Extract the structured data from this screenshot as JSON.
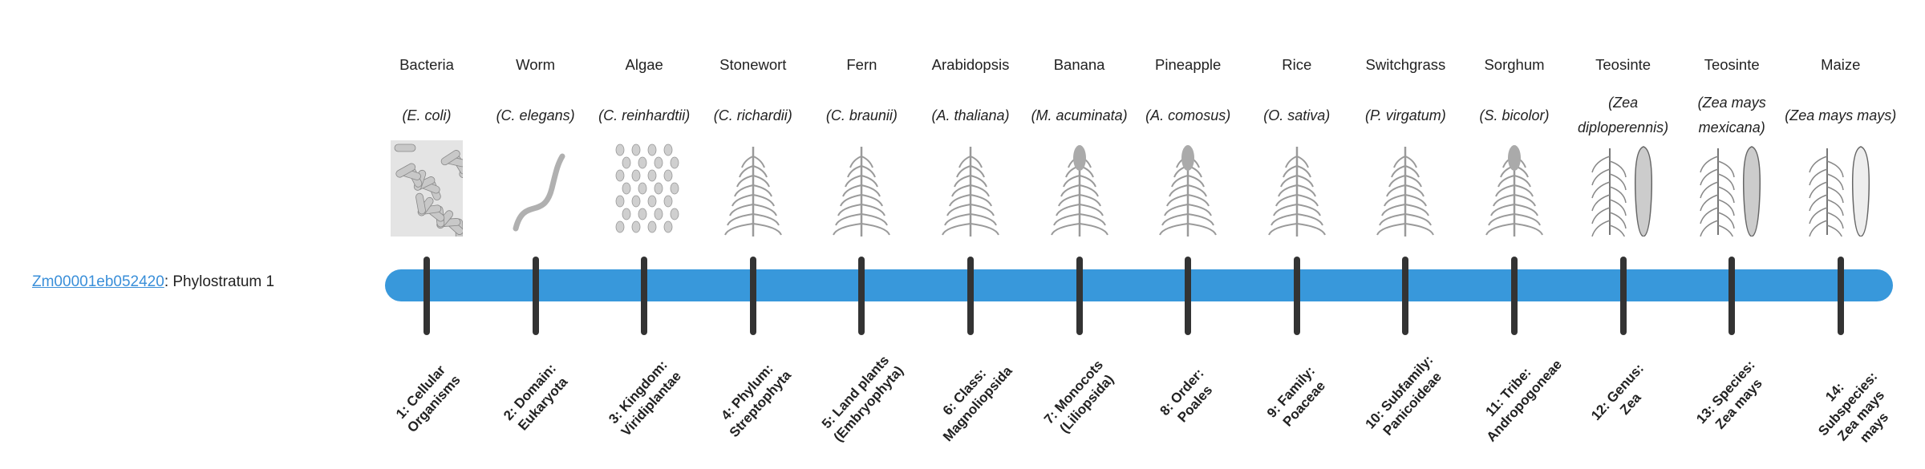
{
  "gene": {
    "id": "Zm00001eb052420",
    "suffix": ": Phylostratum 1"
  },
  "colors": {
    "bar": "#3898db",
    "tick": "#333333",
    "link": "#3a8fd9"
  },
  "strata": [
    {
      "common": "Bacteria",
      "latin": "(E. coli)",
      "rank": "1: Cellular Organisms",
      "image": "bacteria-icon"
    },
    {
      "common": "Worm",
      "latin": "(C. elegans)",
      "rank": "2: Domain: Eukaryota",
      "image": "worm-icon"
    },
    {
      "common": "Algae",
      "latin": "(C. reinhardtii)",
      "rank": "3: Kingdom: Viridiplantae",
      "image": "algae-icon"
    },
    {
      "common": "Stonewort",
      "latin": "(C. richardii)",
      "rank": "4: Phylum: Streptophyta",
      "image": "stonewort-icon"
    },
    {
      "common": "Fern",
      "latin": "(C. braunii)",
      "rank": "5: Land plants (Embryophyta)",
      "image": "fern-icon"
    },
    {
      "common": "Arabidopsis",
      "latin": "(A. thaliana)",
      "rank": "6: Class: Magnoliopsida",
      "image": "arabidopsis-icon"
    },
    {
      "common": "Banana",
      "latin": "(M. acuminata)",
      "rank": "7: Monocots (Liliopsida)",
      "image": "banana-icon"
    },
    {
      "common": "Pineapple",
      "latin": "(A. comosus)",
      "rank": "8: Order: Poales",
      "image": "pineapple-icon"
    },
    {
      "common": "Rice",
      "latin": "(O. sativa)",
      "rank": "9: Family: Poaceae",
      "image": "rice-icon"
    },
    {
      "common": "Switchgrass",
      "latin": "(P. virgatum)",
      "rank": "10: Subfamily: Panicoideae",
      "image": "switchgrass-icon"
    },
    {
      "common": "Sorghum",
      "latin": "(S. bicolor)",
      "rank": "11: Tribe: Andropogoneae",
      "image": "sorghum-icon"
    },
    {
      "common": "Teosinte",
      "latin": "(Zea diploperennis)",
      "rank": "12: Genus: Zea",
      "image": "teosinte-icon"
    },
    {
      "common": "Teosinte",
      "latin": "(Zea mays mexicana)",
      "rank": "13: Species: Zea mays",
      "image": "teosinte-mexicana-icon"
    },
    {
      "common": "Maize",
      "latin": "(Zea mays mays)",
      "rank": "14: Subspecies: Zea mays mays",
      "image": "maize-icon"
    }
  ]
}
